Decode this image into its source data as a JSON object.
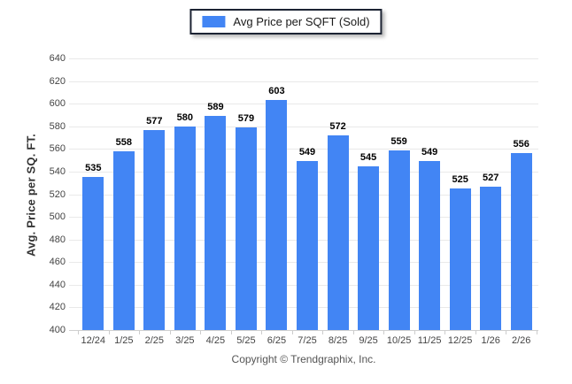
{
  "legend": {
    "label": "Avg Price per SQFT (Sold)"
  },
  "chart_data": {
    "type": "bar",
    "title": "Avg Price per SQFT (Sold)",
    "categories": [
      "12/24",
      "1/25",
      "2/25",
      "3/25",
      "4/25",
      "5/25",
      "6/25",
      "7/25",
      "8/25",
      "9/25",
      "10/25",
      "11/25",
      "12/25",
      "1/26",
      "2/26"
    ],
    "values": [
      535,
      558,
      577,
      580,
      589,
      579,
      603,
      549,
      572,
      545,
      559,
      549,
      525,
      527,
      556
    ],
    "xlabel": "",
    "ylabel": "Avg. Price per SQ. FT.",
    "ylim": [
      400,
      640
    ],
    "ytick_step": 20,
    "grid": true,
    "value_labels": true,
    "legend_position": "top-center",
    "bar_color": "#4285f4"
  },
  "footer": {
    "copyright": "Copyright © Trendgraphix, Inc."
  },
  "colors": {
    "bar": "#4285f4",
    "grid": "#e9e9e9",
    "axis_line": "#d0d0d0",
    "tick_text": "#444444",
    "value_text": "#000000",
    "legend_border": "#1c2333",
    "footer_text": "#555555",
    "background": "#ffffff"
  }
}
